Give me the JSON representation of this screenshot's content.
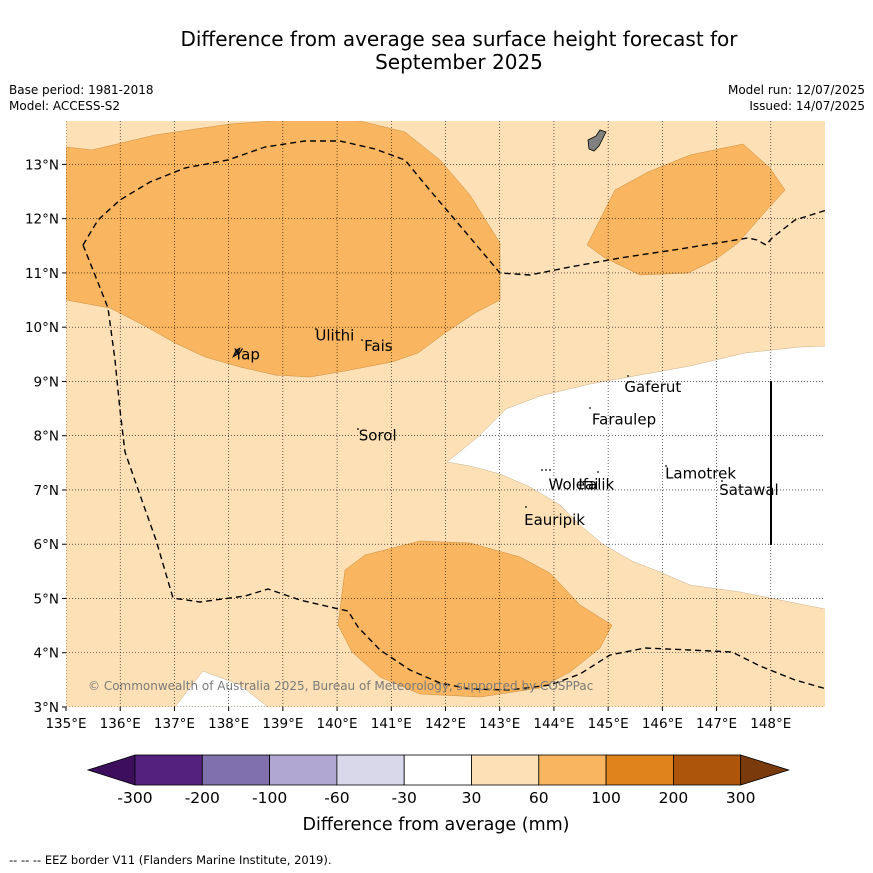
{
  "title_line1": "Difference from average sea surface height forecast for",
  "title_line2": "September 2025",
  "base_period": "Base period: 1981-2018",
  "model": "Model: ACCESS-S2",
  "model_run": "Model run: 12/07/2025",
  "issued": "Issued: 14/07/2025",
  "copyright": "© Commonwealth of Australia 2025, Bureau of Meteorology, supported by COSPPac",
  "footnote": "--  --  -- EEZ border V11 (Flanders Marine Institute, 2019).",
  "map": {
    "lon_ticks": [
      "135°E",
      "136°E",
      "137°E",
      "138°E",
      "139°E",
      "140°E",
      "141°E",
      "142°E",
      "143°E",
      "144°E",
      "145°E",
      "146°E",
      "147°E",
      "148°E"
    ],
    "lat_ticks": [
      "3°N",
      "4°N",
      "5°N",
      "6°N",
      "7°N",
      "8°N",
      "9°N",
      "10°N",
      "11°N",
      "12°N",
      "13°N"
    ],
    "lon_range": [
      135,
      149
    ],
    "lat_range": [
      3,
      13.8
    ],
    "places": [
      {
        "name": "Yap",
        "lon": 138.1,
        "lat": 9.5
      },
      {
        "name": "Ulithi",
        "lon": 139.6,
        "lat": 9.85
      },
      {
        "name": "Fais",
        "lon": 140.5,
        "lat": 9.65
      },
      {
        "name": "Gaferut",
        "lon": 145.3,
        "lat": 8.9
      },
      {
        "name": "Faraulep",
        "lon": 144.7,
        "lat": 8.3
      },
      {
        "name": "Sorol",
        "lon": 140.4,
        "lat": 8.0
      },
      {
        "name": "Woleai",
        "lon": 143.9,
        "lat": 7.1
      },
      {
        "name": "Ifalik",
        "lon": 144.45,
        "lat": 7.1
      },
      {
        "name": "Lamotrek",
        "lon": 146.05,
        "lat": 7.3
      },
      {
        "name": "Satawal",
        "lon": 147.05,
        "lat": 7.0
      },
      {
        "name": "Eauripik",
        "lon": 143.45,
        "lat": 6.45
      }
    ]
  },
  "legend": {
    "ticks": [
      "-300",
      "-200",
      "-100",
      "-60",
      "-30",
      "30",
      "60",
      "100",
      "200",
      "300"
    ],
    "label": "Difference from average (mm)",
    "colors": [
      "#3d0e5c",
      "#55217f",
      "#8070ad",
      "#b0a8d2",
      "#d9d8eb",
      "#ffffff",
      "#fde0b5",
      "#f9b55f",
      "#e0831b",
      "#ad560b",
      "#7a3a0c"
    ]
  },
  "colors": {
    "band_30_60": "#fde0b5",
    "band_60_100": "#f9b55f",
    "band_neutral": "#ffffff",
    "land": "#808080"
  }
}
